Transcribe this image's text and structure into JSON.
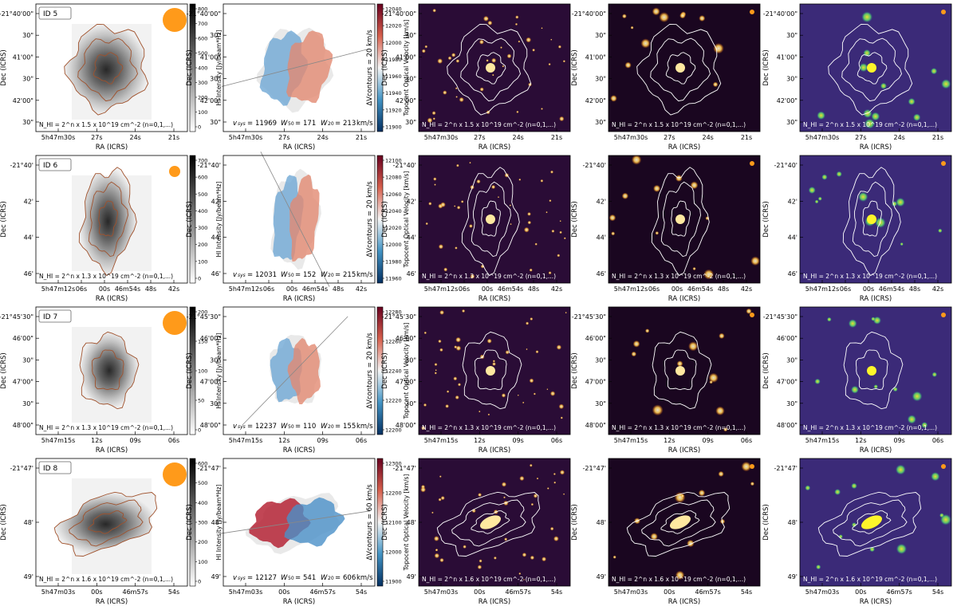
{
  "figure": {
    "axis_labels": {
      "dec": "Dec (ICRS)",
      "ra": "RA (ICRS)"
    },
    "colorbar_labels": {
      "mom0": "HI Intensity [Jy/beam*Hz]",
      "mom1": "Topocent Optical Velocity [km/s]"
    },
    "colors": {
      "contour_gray": "#a0522d",
      "optical_bg": "#2a0c36",
      "smooth_bg": "#1a0620",
      "ir_bg": "#3b2a78",
      "beam": "#ff9a1a"
    },
    "rows": [
      {
        "id": "ID 5",
        "ra_ticks": [
          "5h47m30s",
          "27s",
          "24s",
          "21s"
        ],
        "dec_ticks": [
          "-21°40'00\"",
          "30\"",
          "41'00\"",
          "30\"",
          "42'00\"",
          "30\""
        ],
        "mom0_ticks": [
          "800",
          "700",
          "600",
          "500",
          "400",
          "300",
          "200",
          "100",
          "0"
        ],
        "mom1_ticks": [
          "12040",
          "12020",
          "12000",
          "11980",
          "11960",
          "11940",
          "11920",
          "11900"
        ],
        "contour_note": "N_HI = 2^n x 1.5 x 10^19 cm^-2 (n=0,1,...)",
        "dv_label": "ΔVcontours = 20 km/s",
        "kinematics": {
          "vsys": "11969",
          "w50": "171",
          "w20": "213"
        }
      },
      {
        "id": "ID 6",
        "ra_ticks": [
          "5h47m12s",
          "06s",
          "00s",
          "46m54s",
          "48s",
          "42s"
        ],
        "dec_ticks": [
          "-21°40'",
          "42'",
          "44'",
          "46'"
        ],
        "mom0_ticks": [
          "700",
          "600",
          "500",
          "400",
          "300",
          "200",
          "100",
          "0"
        ],
        "mom1_ticks": [
          "12100",
          "12080",
          "12060",
          "12040",
          "12020",
          "12000",
          "11980",
          "11960"
        ],
        "contour_note": "N_HI = 2^n x 1.3 x 10^19 cm^-2 (n=0,1,...)",
        "dv_label": "ΔVcontours = 20 km/s",
        "kinematics": {
          "vsys": "12031",
          "w50": "152",
          "w20": "215"
        }
      },
      {
        "id": "ID 7",
        "ra_ticks": [
          "5h47m15s",
          "12s",
          "09s",
          "06s"
        ],
        "dec_ticks": [
          "-21°45'30\"",
          "46'00\"",
          "30\"",
          "47'00\"",
          "30\"",
          "48'00\""
        ],
        "mom0_ticks": [
          "200",
          "150",
          "100",
          "50",
          "0"
        ],
        "mom1_ticks": [
          "12280",
          "12260",
          "12240",
          "12220",
          "12200"
        ],
        "contour_note": "N_HI = 2^n x 1.3 x 10^19 cm^-2 (n=0,1,...)",
        "dv_label": "ΔVcontours = 20 km/s",
        "kinematics": {
          "vsys": "12237",
          "w50": "110",
          "w20": "155"
        }
      },
      {
        "id": "ID 8",
        "ra_ticks": [
          "5h47m03s",
          "00s",
          "46m57s",
          "54s"
        ],
        "dec_ticks": [
          "-21°47'",
          "48'",
          "49'"
        ],
        "mom0_ticks": [
          "600",
          "500",
          "400",
          "300",
          "200",
          "100",
          "0"
        ],
        "mom1_ticks": [
          "12300",
          "12200",
          "12100",
          "12000",
          "11900"
        ],
        "contour_note": "N_HI = 2^n x 1.6 x 10^19 cm^-2 (n=0,1,...)",
        "dv_label": "ΔVcontours = 60 km/s",
        "kinematics": {
          "vsys": "12127",
          "w50": "541",
          "w20": "606"
        }
      }
    ]
  }
}
